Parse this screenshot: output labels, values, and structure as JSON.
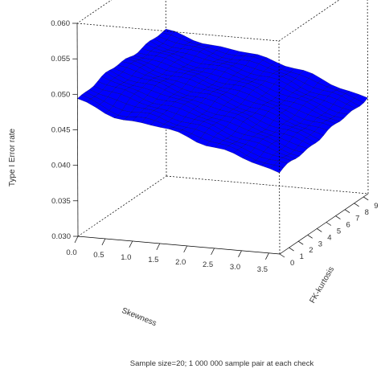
{
  "chart_data": {
    "type": "surface3d",
    "caption": "Sample size=20; 1 000 000 sample pair at each check",
    "z_axis": {
      "label": "Type I Error rate",
      "ticks": [
        "0.030",
        "0.035",
        "0.040",
        "0.045",
        "0.050",
        "0.055",
        "0.060"
      ],
      "range": [
        0.03,
        0.06
      ]
    },
    "x_axis": {
      "label": "Skewness",
      "ticks": [
        "0.0",
        "0.5",
        "1.0",
        "1.5",
        "2.0",
        "2.5",
        "3.0",
        "3.5"
      ],
      "range": [
        0,
        3.7
      ]
    },
    "y_axis": {
      "label": "FK-kurtosis",
      "ticks": [
        "0",
        "1",
        "2",
        "3",
        "4",
        "5",
        "6",
        "7",
        "8",
        "9"
      ],
      "range": [
        0,
        9.5
      ]
    },
    "surface_color": "#0000ff",
    "mesh_color": "#000000",
    "box_color": "#000000",
    "surface_description": "Type I error rate is about 0.050 at low skewness and kurtosis and falls toward about 0.041 at high skewness and kurtosis",
    "corner_values": {
      "skew_0_kurt_0": 0.05,
      "skew_0_kurt_9": 0.0505,
      "skew_3_7_kurt_0": 0.0415,
      "skew_3_7_kurt_9": 0.0435
    }
  }
}
